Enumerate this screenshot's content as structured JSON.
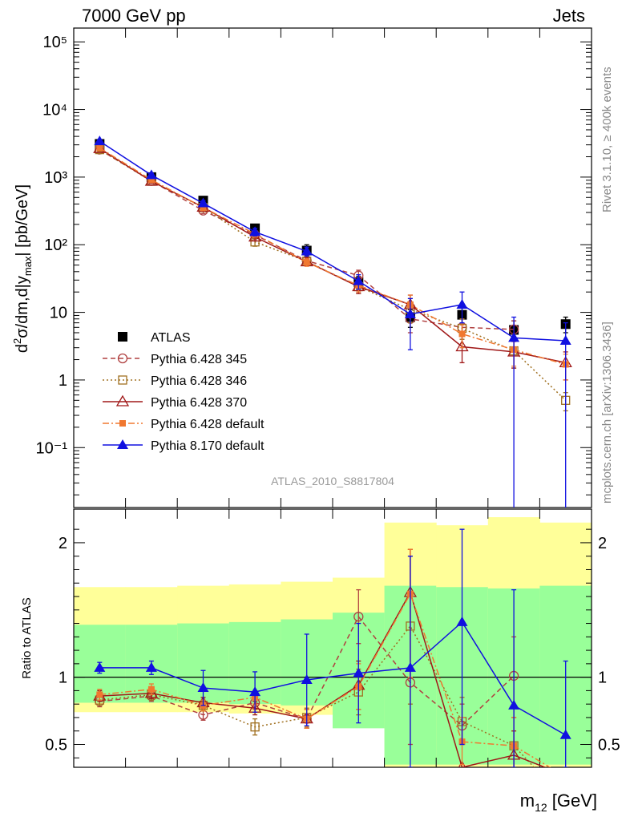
{
  "header": {
    "left": "7000 GeV pp",
    "right": "Jets"
  },
  "side_labels": {
    "rivet": "Rivet 3.1.10, ≥ 400k events",
    "mcplots": "mcplots.cern.ch [arXiv:1306.3436]"
  },
  "analysis_id": "ATLAS_2010_S8817804",
  "chart_data": [
    {
      "type": "line",
      "panel": "main",
      "ylabel": "d²σ/dm,d|y_max| [pb/GeV]",
      "yscale": "log",
      "ylim": [
        0.013,
        160000
      ],
      "y_ticks": [
        {
          "value": 0.1,
          "label": "10⁻¹"
        },
        {
          "value": 1,
          "label": "1"
        },
        {
          "value": 10,
          "label": "10"
        },
        {
          "value": 100,
          "label": "10²"
        },
        {
          "value": 1000,
          "label": "10³"
        },
        {
          "value": 10000,
          "label": "10⁴"
        },
        {
          "value": 100000,
          "label": "10⁵"
        }
      ],
      "x_bins": 10,
      "series": [
        {
          "name": "ATLAS",
          "color": "#000000",
          "marker": "square-filled",
          "line": "none",
          "values": [
            3100,
            1000,
            450,
            175,
            82,
            28,
            8.5,
            9.2,
            5.5,
            6.7
          ],
          "errors": [
            [
              2700,
              3500
            ],
            [
              900,
              1100
            ],
            [
              400,
              500
            ],
            [
              155,
              195
            ],
            [
              68,
              100
            ],
            [
              22,
              34
            ],
            [
              6,
              11
            ],
            [
              7,
              12
            ],
            [
              4.2,
              7.5
            ],
            [
              5,
              8.5
            ]
          ]
        },
        {
          "name": "Pythia 6.428 345",
          "color": "#b04040",
          "marker": "circle-open",
          "line": "dashed",
          "values": [
            2550,
            880,
            320,
            140,
            58,
            35,
            8,
            6,
            5.6,
            null
          ],
          "errors": [
            [
              2400,
              2700
            ],
            [
              820,
              940
            ],
            [
              290,
              350
            ],
            [
              125,
              155
            ],
            [
              50,
              66
            ],
            [
              28,
              42
            ],
            [
              5,
              12
            ],
            [
              4,
              8
            ],
            [
              4,
              7.5
            ],
            null
          ]
        },
        {
          "name": "Pythia 6.428 346",
          "color": "#a07020",
          "marker": "square-open",
          "line": "dotted",
          "values": [
            2550,
            870,
            355,
            110,
            57,
            24,
            11,
            5.8,
            2.7,
            0.5
          ],
          "errors": [
            [
              2400,
              2700
            ],
            [
              810,
              930
            ],
            [
              320,
              390
            ],
            [
              95,
              125
            ],
            [
              50,
              64
            ],
            [
              19,
              29
            ],
            [
              7,
              16
            ],
            [
              4,
              8
            ],
            [
              1.5,
              4
            ],
            [
              0.35,
              0.65
            ]
          ]
        },
        {
          "name": "Pythia 6.428 370",
          "color": "#a01818",
          "marker": "triangle-open",
          "line": "solid",
          "values": [
            2650,
            870,
            360,
            130,
            56,
            24,
            13,
            3.1,
            2.6,
            1.8
          ],
          "errors": [
            [
              2500,
              2800
            ],
            [
              810,
              930
            ],
            [
              320,
              400
            ],
            [
              115,
              145
            ],
            [
              49,
              63
            ],
            [
              19,
              29
            ],
            [
              9,
              18
            ],
            [
              1.8,
              4.5
            ],
            [
              1.5,
              3.7
            ],
            [
              1,
              2.6
            ]
          ]
        },
        {
          "name": "Pythia 6.428 default",
          "color": "#f07830",
          "marker": "square-filled-small",
          "line": "dashdot",
          "values": [
            2700,
            910,
            355,
            145,
            55,
            25,
            13,
            4.8,
            2.8,
            1.7
          ],
          "errors": [
            [
              2550,
              2850
            ],
            [
              850,
              970
            ],
            [
              320,
              390
            ],
            [
              130,
              160
            ],
            [
              48,
              62
            ],
            [
              20,
              30
            ],
            [
              9,
              18
            ],
            [
              3,
              6.5
            ],
            [
              1.6,
              4
            ],
            [
              1,
              2.4
            ]
          ]
        },
        {
          "name": "Pythia 8.170 default",
          "color": "#1010e0",
          "marker": "triangle-filled",
          "line": "solid",
          "values": [
            3400,
            1070,
            410,
            155,
            80,
            29,
            9.4,
            13,
            4.2,
            3.8
          ],
          "errors": [
            [
              3200,
              3600
            ],
            [
              1000,
              1140
            ],
            [
              370,
              450
            ],
            [
              135,
              175
            ],
            [
              68,
              92
            ],
            [
              22,
              36
            ],
            [
              2.8,
              16
            ],
            [
              7,
              20
            ],
            [
              0.01,
              8.5
            ],
            [
              0.01,
              7
            ]
          ]
        }
      ]
    },
    {
      "type": "line",
      "panel": "ratio",
      "ylabel": "Ratio to ATLAS",
      "ylim": [
        0.33,
        2.25
      ],
      "y_ticks": [
        {
          "value": 0.5,
          "label": "0.5"
        },
        {
          "value": 1,
          "label": "1"
        },
        {
          "value": 2,
          "label": "2"
        }
      ],
      "x_bins": 10,
      "bands": {
        "yellow_low": [
          0.74,
          0.74,
          0.74,
          0.73,
          0.72,
          0.7,
          0.33,
          0.33,
          0.33,
          0.33
        ],
        "yellow_high": [
          1.67,
          1.67,
          1.68,
          1.69,
          1.71,
          1.74,
          2.15,
          2.13,
          2.19,
          2.15
        ],
        "green_low": [
          0.81,
          0.81,
          0.81,
          0.8,
          0.79,
          0.62,
          0.35,
          0.35,
          0.35,
          0.35
        ],
        "green_high": [
          1.39,
          1.39,
          1.4,
          1.41,
          1.43,
          1.48,
          1.68,
          1.67,
          1.66,
          1.68
        ]
      },
      "series": [
        {
          "name": "Pythia 6.428 345",
          "color": "#b04040",
          "marker": "circle-open",
          "line": "dashed",
          "values": [
            0.82,
            0.86,
            0.72,
            0.81,
            0.69,
            1.45,
            0.96,
            0.64,
            1.01,
            null
          ],
          "errors": [
            [
              0.78,
              0.86
            ],
            [
              0.82,
              0.9
            ],
            [
              0.68,
              0.76
            ],
            [
              0.76,
              0.86
            ],
            [
              0.62,
              0.76
            ],
            [
              1.25,
              1.65
            ],
            [
              0.5,
              1.9
            ],
            [
              0.5,
              0.8
            ],
            [
              0.7,
              1.3
            ],
            null
          ]
        },
        {
          "name": "Pythia 6.428 346",
          "color": "#a07020",
          "marker": "square-open",
          "line": "dotted",
          "values": [
            0.83,
            0.87,
            0.79,
            0.63,
            0.7,
            0.89,
            1.38,
            0.67,
            0.49,
            0.08
          ],
          "errors": [
            [
              0.79,
              0.87
            ],
            [
              0.83,
              0.91
            ],
            [
              0.75,
              0.83
            ],
            [
              0.57,
              0.69
            ],
            [
              0.63,
              0.77
            ],
            [
              0.72,
              1.06
            ],
            [
              0.8,
              1.95
            ],
            [
              0.5,
              0.85
            ],
            [
              0.3,
              0.7
            ],
            null
          ]
        },
        {
          "name": "Pythia 6.428 370",
          "color": "#a01818",
          "marker": "triangle-open",
          "line": "solid",
          "values": [
            0.86,
            0.88,
            0.81,
            0.77,
            0.69,
            0.94,
            1.63,
            0.33,
            0.42,
            0.27
          ],
          "errors": [
            [
              0.82,
              0.9
            ],
            [
              0.84,
              0.92
            ],
            [
              0.77,
              0.85
            ],
            [
              0.72,
              0.82
            ],
            [
              0.62,
              0.76
            ],
            [
              0.76,
              1.12
            ],
            [
              1.0,
              1.95
            ],
            null,
            [
              0.25,
              0.6
            ],
            null
          ]
        },
        {
          "name": "Pythia 6.428 default",
          "color": "#f07830",
          "marker": "square-filled-small",
          "line": "dashdot",
          "values": [
            0.87,
            0.91,
            0.79,
            0.85,
            0.69,
            0.93,
            1.62,
            0.52,
            0.49,
            0.26
          ],
          "errors": [
            [
              0.83,
              0.91
            ],
            [
              0.87,
              0.95
            ],
            [
              0.75,
              0.83
            ],
            [
              0.8,
              0.9
            ],
            [
              0.62,
              0.76
            ],
            [
              0.76,
              1.1
            ],
            [
              1.0,
              1.95
            ],
            [
              0.35,
              0.7
            ],
            [
              0.3,
              0.7
            ],
            null
          ]
        },
        {
          "name": "Pythia 8.170 default",
          "color": "#1010e0",
          "marker": "triangle-filled",
          "line": "solid",
          "values": [
            1.07,
            1.07,
            0.92,
            0.89,
            0.98,
            1.03,
            1.07,
            1.41,
            0.79,
            0.57
          ],
          "errors": [
            [
              1.03,
              1.11
            ],
            [
              1.02,
              1.12
            ],
            [
              0.79,
              1.05
            ],
            [
              0.74,
              1.04
            ],
            [
              0.64,
              1.32
            ],
            [
              0.66,
              1.4
            ],
            [
              0.33,
              1.9
            ],
            [
              0.5,
              2.1
            ],
            [
              0.33,
              1.65
            ],
            [
              0.33,
              1.12
            ]
          ]
        }
      ]
    }
  ],
  "xlabel": "m₁₂ [GeV]"
}
